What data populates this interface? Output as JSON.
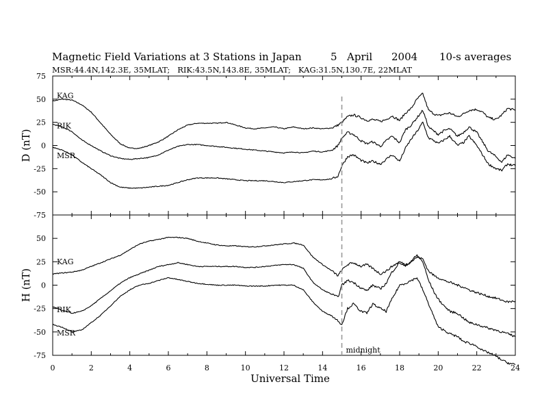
{
  "chart_data": {
    "type": "line",
    "title_left": "Magnetic Field Variations at 3 Stations in Japan",
    "title_day": "5",
    "title_month": "April",
    "title_year": "2004",
    "title_right": "10-s averages",
    "subtitle": "MSR:44.4N,142.3E, 35MLAT;   RIK:43.5N,143.8E, 35MLAT;   KAG:31.5N,130.7E, 22MLAT",
    "xlabel": "Universal Time",
    "xlim": [
      0,
      24
    ],
    "xticks": [
      0,
      2,
      4,
      6,
      8,
      10,
      12,
      14,
      16,
      18,
      20,
      22,
      24
    ],
    "x": [
      0,
      0.5,
      1,
      1.5,
      2,
      2.5,
      3,
      3.5,
      4,
      4.5,
      5,
      5.5,
      6,
      6.5,
      7,
      7.5,
      8,
      8.5,
      9,
      9.5,
      10,
      10.5,
      11,
      11.5,
      12,
      12.5,
      13,
      13.5,
      14,
      14.5,
      14.8,
      15,
      15.3,
      15.6,
      16,
      16.3,
      16.6,
      17,
      17.3,
      17.6,
      18,
      18.3,
      18.6,
      18.9,
      19.2,
      19.5,
      19.8,
      20,
      20.3,
      20.6,
      21,
      21.3,
      21.6,
      22,
      22.3,
      22.6,
      23,
      23.3,
      23.6,
      24
    ],
    "annotation": "midnight",
    "annotation_x": 15,
    "panels": [
      {
        "ylabel": "D (nT)",
        "ylim": [
          -75,
          75
        ],
        "yticks": [
          75,
          50,
          25,
          0,
          -25,
          -50,
          -75
        ],
        "series": [
          {
            "name": "KAG",
            "values": [
              48,
              50,
              49,
              44,
              36,
              24,
              12,
              2,
              -3,
              -3,
              0,
              4,
              10,
              17,
              22,
              24,
              24,
              24,
              25,
              22,
              19,
              18,
              19,
              20,
              18,
              20,
              18,
              19,
              18,
              19,
              22,
              25,
              31,
              33,
              30,
              27,
              28,
              26,
              28,
              32,
              27,
              35,
              40,
              50,
              56,
              38,
              34,
              32,
              34,
              35,
              31,
              34,
              38,
              39,
              36,
              30,
              28,
              33,
              40,
              38
            ]
          },
          {
            "name": "RIK",
            "values": [
              23,
              20,
              15,
              6,
              0,
              -6,
              -11,
              -14,
              -15,
              -14,
              -13,
              -10,
              -5,
              -1,
              1,
              1,
              0,
              -1,
              -2,
              -3,
              -4,
              -5,
              -6,
              -7,
              -8,
              -7,
              -8,
              -6,
              -7,
              -5,
              0,
              8,
              14,
              12,
              5,
              2,
              4,
              -1,
              5,
              10,
              3,
              17,
              22,
              30,
              38,
              20,
              15,
              12,
              16,
              18,
              10,
              14,
              20,
              14,
              4,
              -6,
              -12,
              -18,
              -10,
              -14
            ]
          },
          {
            "name": "MSR",
            "values": [
              -2,
              -5,
              -10,
              -18,
              -25,
              -32,
              -40,
              -45,
              -46,
              -46,
              -45,
              -44,
              -43,
              -40,
              -37,
              -35,
              -35,
              -35,
              -36,
              -37,
              -38,
              -38,
              -38,
              -39,
              -40,
              -39,
              -38,
              -37,
              -37,
              -36,
              -33,
              -22,
              -12,
              -10,
              -16,
              -19,
              -17,
              -20,
              -15,
              -10,
              -17,
              -3,
              7,
              15,
              25,
              8,
              5,
              2,
              6,
              10,
              0,
              3,
              10,
              0,
              -10,
              -20,
              -25,
              -27,
              -20,
              -22
            ]
          }
        ]
      },
      {
        "ylabel": "H (nT)",
        "ylim": [
          -75,
          75
        ],
        "yticks": [
          75,
          50,
          25,
          0,
          -25,
          -50,
          -75
        ],
        "series": [
          {
            "name": "KAG",
            "values": [
              12,
              13,
              14,
              16,
              20,
              24,
              28,
              32,
              38,
              44,
              47,
              49,
              51,
              51,
              50,
              47,
              45,
              43,
              42,
              42,
              41,
              41,
              42,
              43,
              44,
              45,
              43,
              30,
              22,
              15,
              10,
              16,
              22,
              24,
              20,
              22,
              18,
              12,
              15,
              20,
              25,
              22,
              25,
              30,
              28,
              15,
              10,
              8,
              5,
              3,
              0,
              -2,
              -5,
              -8,
              -10,
              -12,
              -14,
              -16,
              -18,
              -17
            ]
          },
          {
            "name": "RIK",
            "values": [
              -23,
              -27,
              -30,
              -28,
              -22,
              -14,
              -6,
              2,
              8,
              12,
              16,
              20,
              22,
              24,
              22,
              20,
              20,
              20,
              20,
              20,
              19,
              19,
              20,
              21,
              22,
              22,
              18,
              3,
              -5,
              -10,
              -13,
              0,
              5,
              3,
              -3,
              -6,
              0,
              -4,
              2,
              14,
              24,
              20,
              26,
              32,
              25,
              5,
              -8,
              -15,
              -22,
              -28,
              -30,
              -35,
              -40,
              -42,
              -44,
              -46,
              -48,
              -50,
              -52,
              -55
            ]
          },
          {
            "name": "MSR",
            "values": [
              -42,
              -45,
              -50,
              -48,
              -40,
              -32,
              -22,
              -12,
              -5,
              0,
              2,
              5,
              8,
              6,
              4,
              2,
              1,
              0,
              0,
              0,
              -1,
              -1,
              -1,
              0,
              0,
              0,
              -5,
              -18,
              -28,
              -33,
              -38,
              -42,
              -25,
              -20,
              -28,
              -30,
              -20,
              -25,
              -28,
              -15,
              0,
              2,
              5,
              8,
              -5,
              -20,
              -35,
              -45,
              -48,
              -52,
              -55,
              -60,
              -62,
              -65,
              -70,
              -72,
              -76,
              -80,
              -83,
              -85
            ]
          }
        ]
      }
    ]
  }
}
